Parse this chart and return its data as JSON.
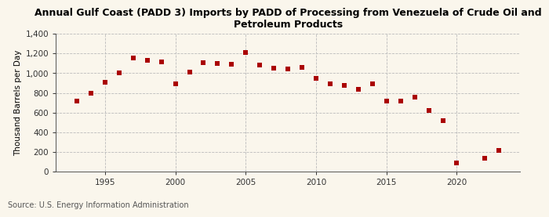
{
  "title": "Annual Gulf Coast (PADD 3) Imports by PADD of Processing from Venezuela of Crude Oil and\nPetroleum Products",
  "ylabel": "Thousand Barrels per Day",
  "source": "Source: U.S. Energy Information Administration",
  "background_color": "#faf6ec",
  "plot_background_color": "#faf6ec",
  "marker_color": "#aa0000",
  "grid_color": "#bbbbbb",
  "years": [
    1993,
    1994,
    1995,
    1996,
    1997,
    1998,
    1999,
    2000,
    2001,
    2002,
    2003,
    2004,
    2005,
    2006,
    2007,
    2008,
    2009,
    2010,
    2011,
    2012,
    2013,
    2014,
    2015,
    2016,
    2017,
    2018,
    2019,
    2020,
    2022,
    2023
  ],
  "values": [
    720,
    800,
    905,
    1000,
    1155,
    1130,
    1115,
    890,
    1010,
    1110,
    1095,
    1090,
    1210,
    1080,
    1050,
    1040,
    1060,
    950,
    890,
    880,
    840,
    895,
    720,
    720,
    760,
    620,
    520,
    90,
    135,
    215
  ],
  "ylim": [
    0,
    1400
  ],
  "yticks": [
    0,
    200,
    400,
    600,
    800,
    1000,
    1200,
    1400
  ],
  "ytick_labels": [
    "0",
    "200",
    "400",
    "600",
    "800",
    "1,000",
    "1,200",
    "1,400"
  ],
  "xlim": [
    1991.5,
    2024.5
  ],
  "xticks": [
    1995,
    2000,
    2005,
    2010,
    2015,
    2020
  ],
  "title_fontsize": 9,
  "axis_fontsize": 7.5,
  "tick_fontsize": 7.5,
  "source_fontsize": 7
}
